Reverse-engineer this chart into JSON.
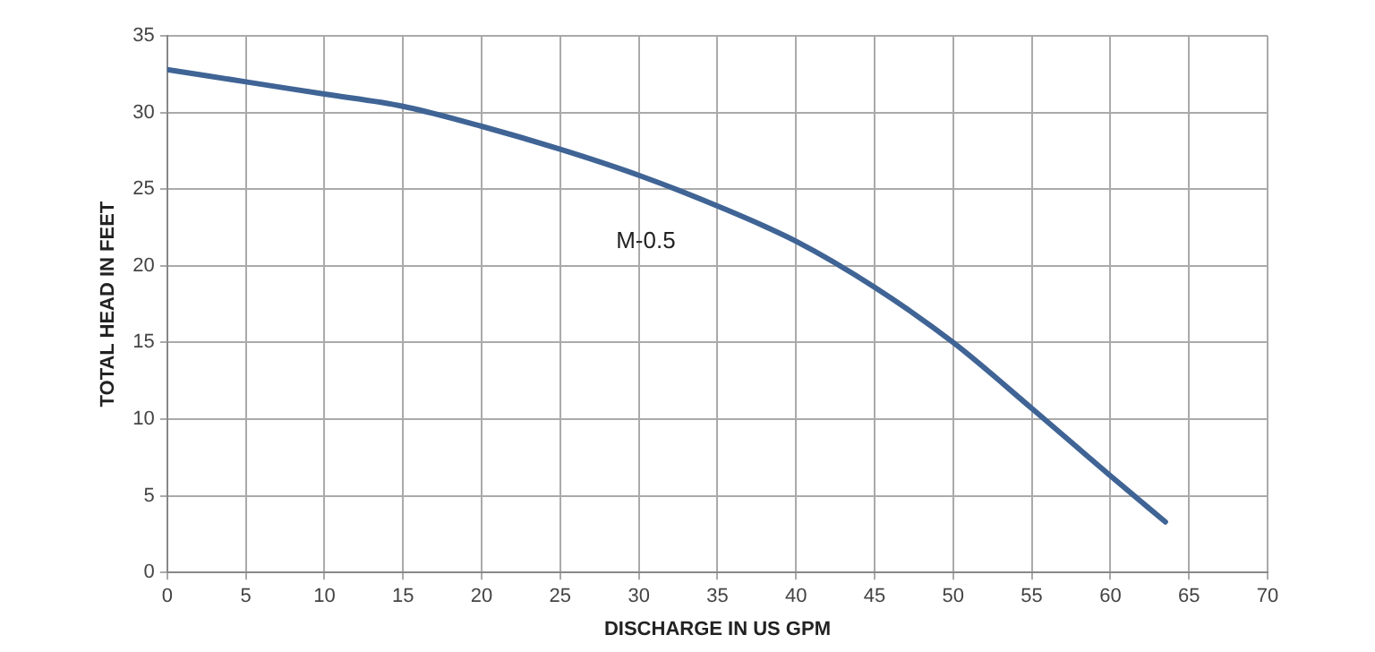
{
  "chart_data": {
    "type": "line",
    "xlabel": "DISCHARGE IN US GPM",
    "ylabel": "TOTAL HEAD IN FEET",
    "series": [
      {
        "name": "M-0.5",
        "color": "#3f6495",
        "x": [
          0,
          5,
          10,
          15,
          20,
          25,
          30,
          35,
          40,
          45,
          50,
          55,
          60,
          63.5
        ],
        "values": [
          32.8,
          32.0,
          31.2,
          30.4,
          29.1,
          27.6,
          25.9,
          23.9,
          21.6,
          18.6,
          15.0,
          10.7,
          6.3,
          3.3
        ]
      }
    ],
    "xlim": [
      0,
      70
    ],
    "xticks": [
      0,
      5,
      10,
      15,
      20,
      25,
      30,
      35,
      40,
      45,
      50,
      55,
      60,
      65,
      70
    ],
    "ylim": [
      0,
      35
    ],
    "yticks": [
      0,
      5,
      10,
      15,
      20,
      25,
      30,
      35
    ],
    "grid": true,
    "legend": false,
    "marker": "none",
    "line_style": "solid"
  }
}
